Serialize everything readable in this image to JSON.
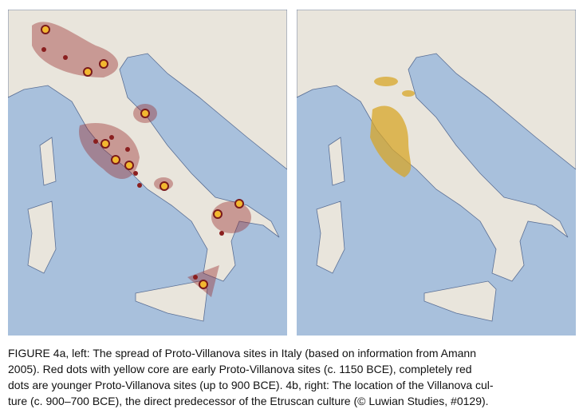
{
  "figure": {
    "caption": {
      "lines": [
        "FIGURE 4a, left: The spread of Proto-Villanova sites in Italy (based on information from Amann",
        "2005). Red dots with yellow core are early Proto-Villanova sites (c. 1150 BCE), completely red",
        "dots are younger Proto-Villanova sites (up to 900 BCE). 4b, right: The location of the Villanova cul-",
        "ture (c. 900–700 BCE), the direct predecessor of the Etruscan culture (© Luwian Studies, #0129)."
      ]
    }
  }
}
